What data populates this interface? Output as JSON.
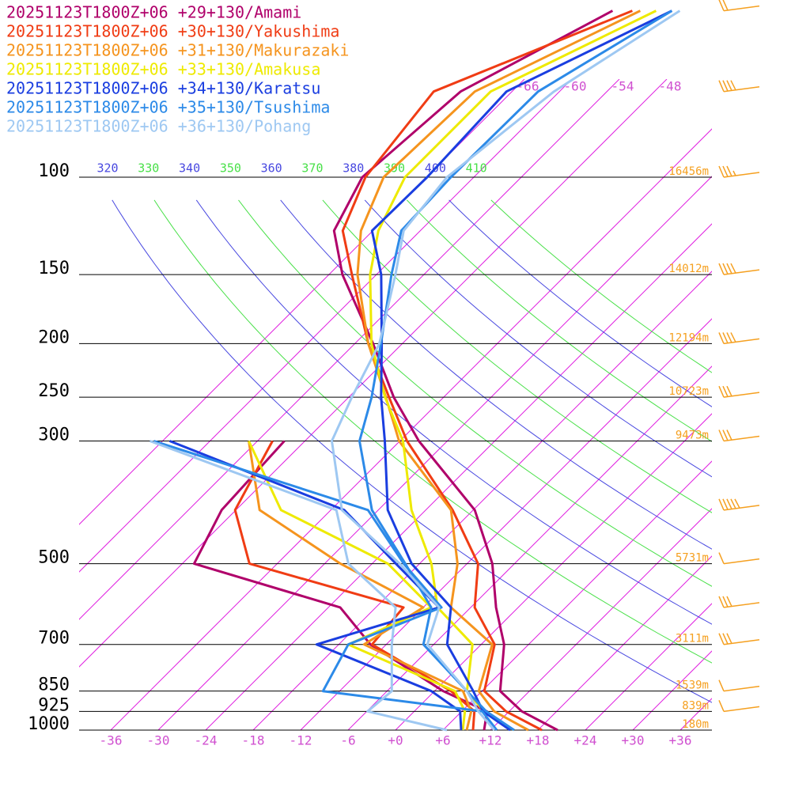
{
  "chart_data": {
    "type": "skewt",
    "pressure": [
      1000,
      925,
      850,
      700,
      600,
      500,
      400,
      300,
      250,
      200,
      150,
      125,
      100,
      70,
      50
    ],
    "series": [
      {
        "name": "20251123T1800Z+06 +29+130/Amami",
        "color": "#b0006a",
        "values": [
          20.5,
          13.6,
          8.3,
          2.9,
          -2.8,
          -8.8,
          -17.8,
          -33.6,
          -42.3,
          -51.7,
          -64.3,
          -70.9,
          -74.1,
          -72.5,
          -63.5
        ],
        "dewpoint": [
          11.2,
          9.2,
          1.1,
          -14.0,
          -22.5,
          -46.5,
          -49.8,
          -50.6,
          null,
          null,
          null,
          null,
          null,
          null,
          null
        ]
      },
      {
        "name": "20251123T1800Z+06 +30+130/Yakushima",
        "color": "#f03c14",
        "values": [
          18.5,
          11.6,
          6.3,
          1.7,
          -5.5,
          -10.6,
          -20.6,
          -35.1,
          -42.9,
          -52.3,
          -63.1,
          -69.8,
          -73.7,
          -75.9,
          -61.0
        ],
        "dewpoint": [
          9.8,
          7.6,
          2.1,
          -13.8,
          -14.5,
          -39.5,
          -48.1,
          -52.1,
          null,
          null,
          null,
          null,
          null,
          null,
          null
        ]
      },
      {
        "name": "20251123T1800Z+06 +31+130/Makurazaki",
        "color": "#f5941e",
        "values": [
          16.8,
          10.1,
          5.6,
          1.4,
          -8.5,
          -13.2,
          -20.8,
          -36.1,
          -43.3,
          -52.3,
          -62.4,
          -67.5,
          -71.4,
          -70.7,
          -60.0
        ],
        "dewpoint": [
          9.0,
          7.2,
          3.6,
          -14.8,
          -12.0,
          -28.0,
          -45.0,
          -55.1,
          null,
          null,
          null,
          null,
          null,
          null,
          null
        ]
      },
      {
        "name": "20251123T1800Z+06 +33+130/Amakusa",
        "color": "#eeea00",
        "values": [
          15.0,
          8.8,
          4.1,
          -1.1,
          -10.2,
          -16.5,
          -25.8,
          -35.6,
          -43.4,
          -51.9,
          -60.8,
          -65.3,
          -68.7,
          -68.7,
          -58.0
        ],
        "dewpoint": [
          8.5,
          6.4,
          2.6,
          -16.8,
          -11.0,
          -22.0,
          -42.3,
          -55.1,
          null,
          null,
          null,
          null,
          null,
          null,
          null
        ]
      },
      {
        "name": "20251123T1800Z+06 +34+130/Karatsu",
        "color": "#1a3ee0",
        "values": [
          14.5,
          8.7,
          4.9,
          -4.3,
          -8.5,
          -19.0,
          -28.8,
          -37.9,
          -43.9,
          -50.6,
          -59.4,
          -66.1,
          -65.9,
          -66.7,
          -56.0
        ],
        "dewpoint": [
          8.3,
          5.8,
          -0.4,
          -20.8,
          -10.0,
          -21.0,
          -34.3,
          -65.1,
          null,
          null,
          null,
          null,
          null,
          null,
          null
        ]
      },
      {
        "name": "20251123T1800Z+06 +35+130/Tsushima",
        "color": "#2c8ae8",
        "values": [
          15.0,
          9.1,
          4.1,
          -7.3,
          -11.0,
          -19.8,
          -30.8,
          -41.1,
          -45.1,
          -50.7,
          -58.1,
          -62.4,
          -62.9,
          -62.7,
          -56.0
        ],
        "dewpoint": [
          12.8,
          8.6,
          -14.1,
          -16.8,
          -9.7,
          -20.0,
          -31.3,
          -67.1,
          null,
          null,
          null,
          null,
          null,
          null,
          null
        ]
      },
      {
        "name": "20251123T1800Z+06 +36+130/Pohang",
        "color": "#9ec8f2",
        "values": [
          12.5,
          8.1,
          4.1,
          -6.8,
          -10.0,
          -20.5,
          -34.6,
          -44.6,
          -47.6,
          -50.9,
          -57.6,
          -62.1,
          -63.4,
          -60.7,
          -55.0
        ],
        "dewpoint": [
          6.5,
          -5.9,
          -5.4,
          -11.3,
          -15.5,
          -27.0,
          -35.3,
          -67.6,
          null,
          null,
          null,
          null,
          null,
          null,
          null
        ]
      }
    ],
    "xlim": [
      -40,
      40
    ],
    "ylim": [
      1000,
      100
    ],
    "log_y": true,
    "xticks": [
      -36,
      -30,
      -24,
      -18,
      -12,
      -6,
      {
        "value": 0,
        "label": "+0"
      },
      {
        "value": 6,
        "label": "+6"
      },
      {
        "value": 12,
        "label": "+12"
      },
      {
        "value": 18,
        "label": "+18"
      },
      {
        "value": 24,
        "label": "+24"
      },
      {
        "value": 30,
        "label": "+30"
      },
      {
        "value": 36,
        "label": "+36"
      }
    ],
    "isotherm_labels": [
      -66,
      -60,
      -54,
      -48
    ],
    "yticks": [
      100,
      150,
      200,
      250,
      300,
      500,
      700,
      850,
      925,
      1000
    ],
    "height_labels": [
      "16456m",
      "14012m",
      "12194m",
      "10723m",
      "9473m",
      "5731m",
      "3111m",
      "1539m",
      "839m",
      "180m"
    ],
    "adiabats": [
      320,
      330,
      340,
      350,
      360,
      370,
      380,
      390,
      400,
      410
    ],
    "adiabat_colors": [
      "#4848e0",
      "#48e048"
    ],
    "isotherm_color": "#e020e0",
    "wind_color": "#f5a020",
    "wind_barbs": [
      {
        "pressure": 50,
        "speed": 20
      },
      {
        "pressure": 70,
        "speed": 40
      },
      {
        "pressure": 100,
        "speed": 35
      },
      {
        "pressure": 150,
        "speed": 40
      },
      {
        "pressure": 200,
        "speed": 40
      },
      {
        "pressure": 250,
        "speed": 30
      },
      {
        "pressure": 300,
        "speed": 30
      },
      {
        "pressure": 400,
        "speed": 50
      },
      {
        "pressure": 500,
        "speed": 10
      },
      {
        "pressure": 600,
        "speed": 30
      },
      {
        "pressure": 700,
        "speed": 30
      },
      {
        "pressure": 850,
        "speed": 10
      },
      {
        "pressure": 925,
        "speed": 10
      }
    ]
  }
}
